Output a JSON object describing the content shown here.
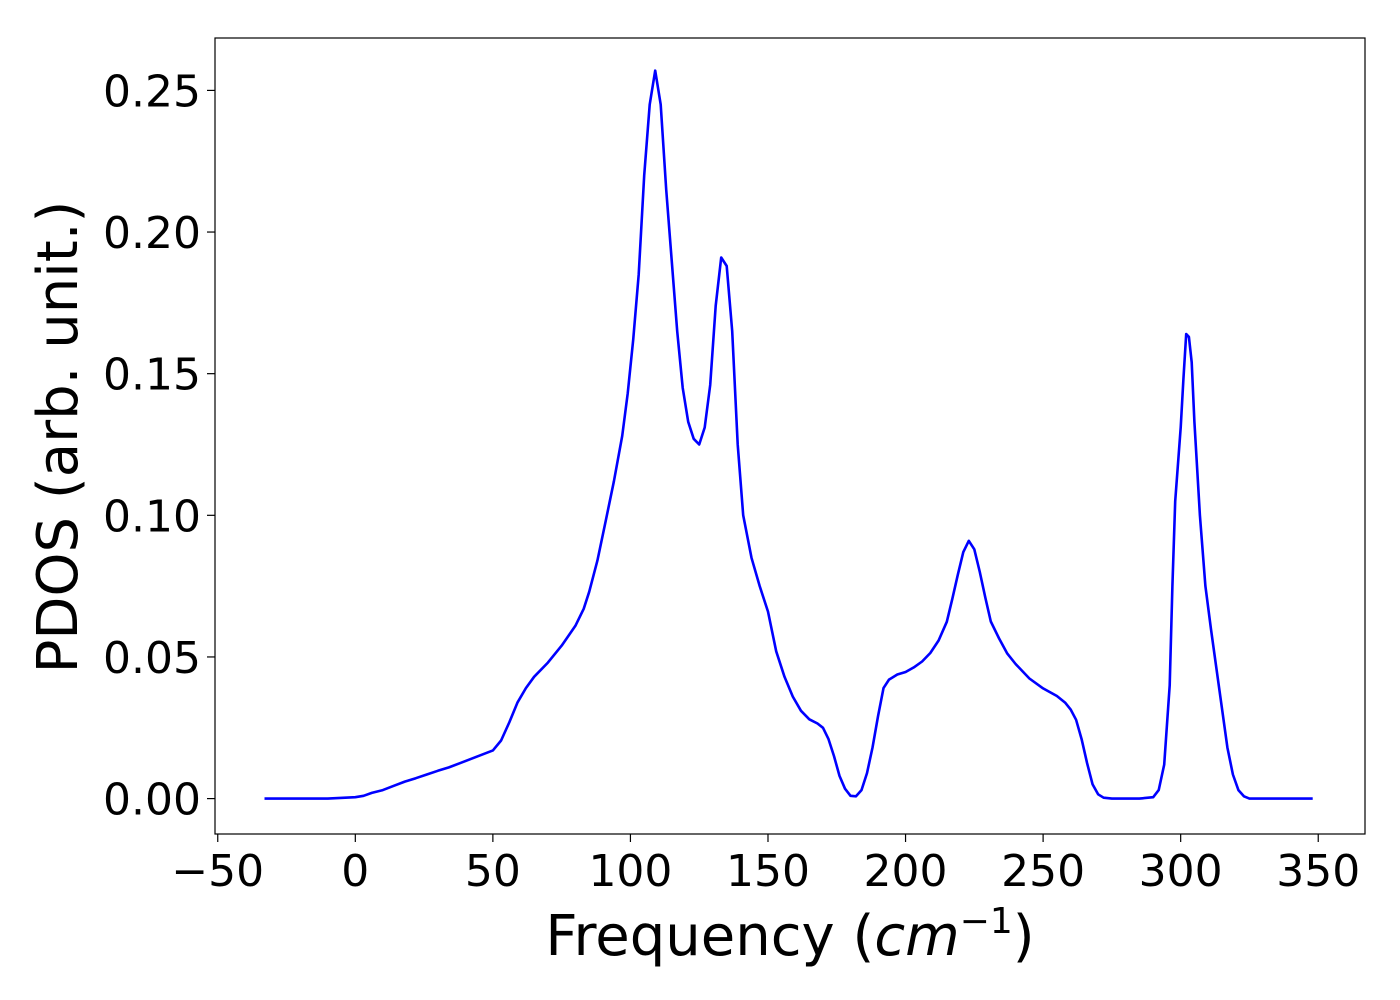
{
  "chart_data": {
    "type": "line",
    "xlabel_prefix": "Frequency (",
    "xlabel_unit_base": "cm",
    "xlabel_unit_exp": "−1",
    "xlabel_suffix": ")",
    "ylabel": "PDOS (arb. unit.)",
    "xlim": [
      -51,
      367
    ],
    "ylim": [
      -0.0125,
      0.2685
    ],
    "xticks": [
      -50,
      0,
      50,
      100,
      150,
      200,
      250,
      300,
      350
    ],
    "xtick_labels": [
      "−50",
      "0",
      "50",
      "100",
      "150",
      "200",
      "250",
      "300",
      "350"
    ],
    "yticks": [
      0.0,
      0.05,
      0.1,
      0.15,
      0.2,
      0.25
    ],
    "ytick_labels": [
      "0.00",
      "0.05",
      "0.10",
      "0.15",
      "0.20",
      "0.25"
    ],
    "grid": false,
    "series": [
      {
        "color": "#0000ff",
        "x": [
          -33,
          -10,
          0,
          3,
          6,
          10,
          14,
          18,
          22,
          26,
          30,
          34,
          38,
          42,
          46,
          50,
          53,
          56,
          59,
          62,
          65,
          70,
          75,
          80,
          83,
          85,
          88,
          91,
          94,
          97,
          99,
          101,
          103,
          105,
          107,
          109,
          111,
          113,
          115,
          117,
          119,
          121,
          123,
          125,
          127,
          129,
          131,
          133,
          135,
          137,
          139,
          141,
          144,
          147,
          150,
          153,
          156,
          159,
          162,
          165,
          168,
          170,
          172,
          174,
          176,
          178,
          180,
          182,
          184,
          186,
          188,
          190,
          192,
          194,
          197,
          200,
          203,
          206,
          209,
          212,
          215,
          217,
          219,
          221,
          223,
          225,
          227,
          229,
          231,
          234,
          237,
          240,
          245,
          250,
          255,
          258,
          260,
          262,
          264,
          266,
          268,
          270,
          272,
          275,
          280,
          285,
          290,
          292,
          294,
          296,
          297,
          298,
          300,
          301,
          302,
          303,
          304,
          305,
          307,
          309,
          311,
          313,
          315,
          317,
          319,
          321,
          323,
          325,
          330,
          348
        ],
        "y": [
          0.0,
          0.0,
          0.0005,
          0.001,
          0.002,
          0.003,
          0.0045,
          0.006,
          0.0072,
          0.0085,
          0.0098,
          0.011,
          0.0125,
          0.014,
          0.0155,
          0.017,
          0.0205,
          0.027,
          0.034,
          0.039,
          0.043,
          0.048,
          0.054,
          0.061,
          0.067,
          0.073,
          0.084,
          0.098,
          0.112,
          0.128,
          0.143,
          0.162,
          0.185,
          0.22,
          0.245,
          0.257,
          0.245,
          0.215,
          0.19,
          0.165,
          0.145,
          0.133,
          0.127,
          0.125,
          0.131,
          0.146,
          0.174,
          0.191,
          0.188,
          0.165,
          0.125,
          0.1,
          0.085,
          0.075,
          0.066,
          0.052,
          0.043,
          0.036,
          0.031,
          0.028,
          0.0265,
          0.025,
          0.021,
          0.015,
          0.008,
          0.0035,
          0.001,
          0.0008,
          0.003,
          0.009,
          0.018,
          0.029,
          0.039,
          0.042,
          0.0438,
          0.0447,
          0.0463,
          0.0484,
          0.0514,
          0.0558,
          0.0624,
          0.0705,
          0.079,
          0.087,
          0.091,
          0.088,
          0.08,
          0.071,
          0.0625,
          0.0565,
          0.0512,
          0.0475,
          0.0424,
          0.0389,
          0.0362,
          0.0339,
          0.0315,
          0.0278,
          0.021,
          0.0125,
          0.005,
          0.0015,
          0.0003,
          0.0,
          0.0,
          0.0,
          0.0005,
          0.003,
          0.012,
          0.04,
          0.075,
          0.105,
          0.131,
          0.148,
          0.164,
          0.163,
          0.154,
          0.133,
          0.1,
          0.075,
          0.06,
          0.046,
          0.032,
          0.018,
          0.0085,
          0.003,
          0.0008,
          0.0,
          0.0,
          0.0
        ]
      }
    ]
  }
}
